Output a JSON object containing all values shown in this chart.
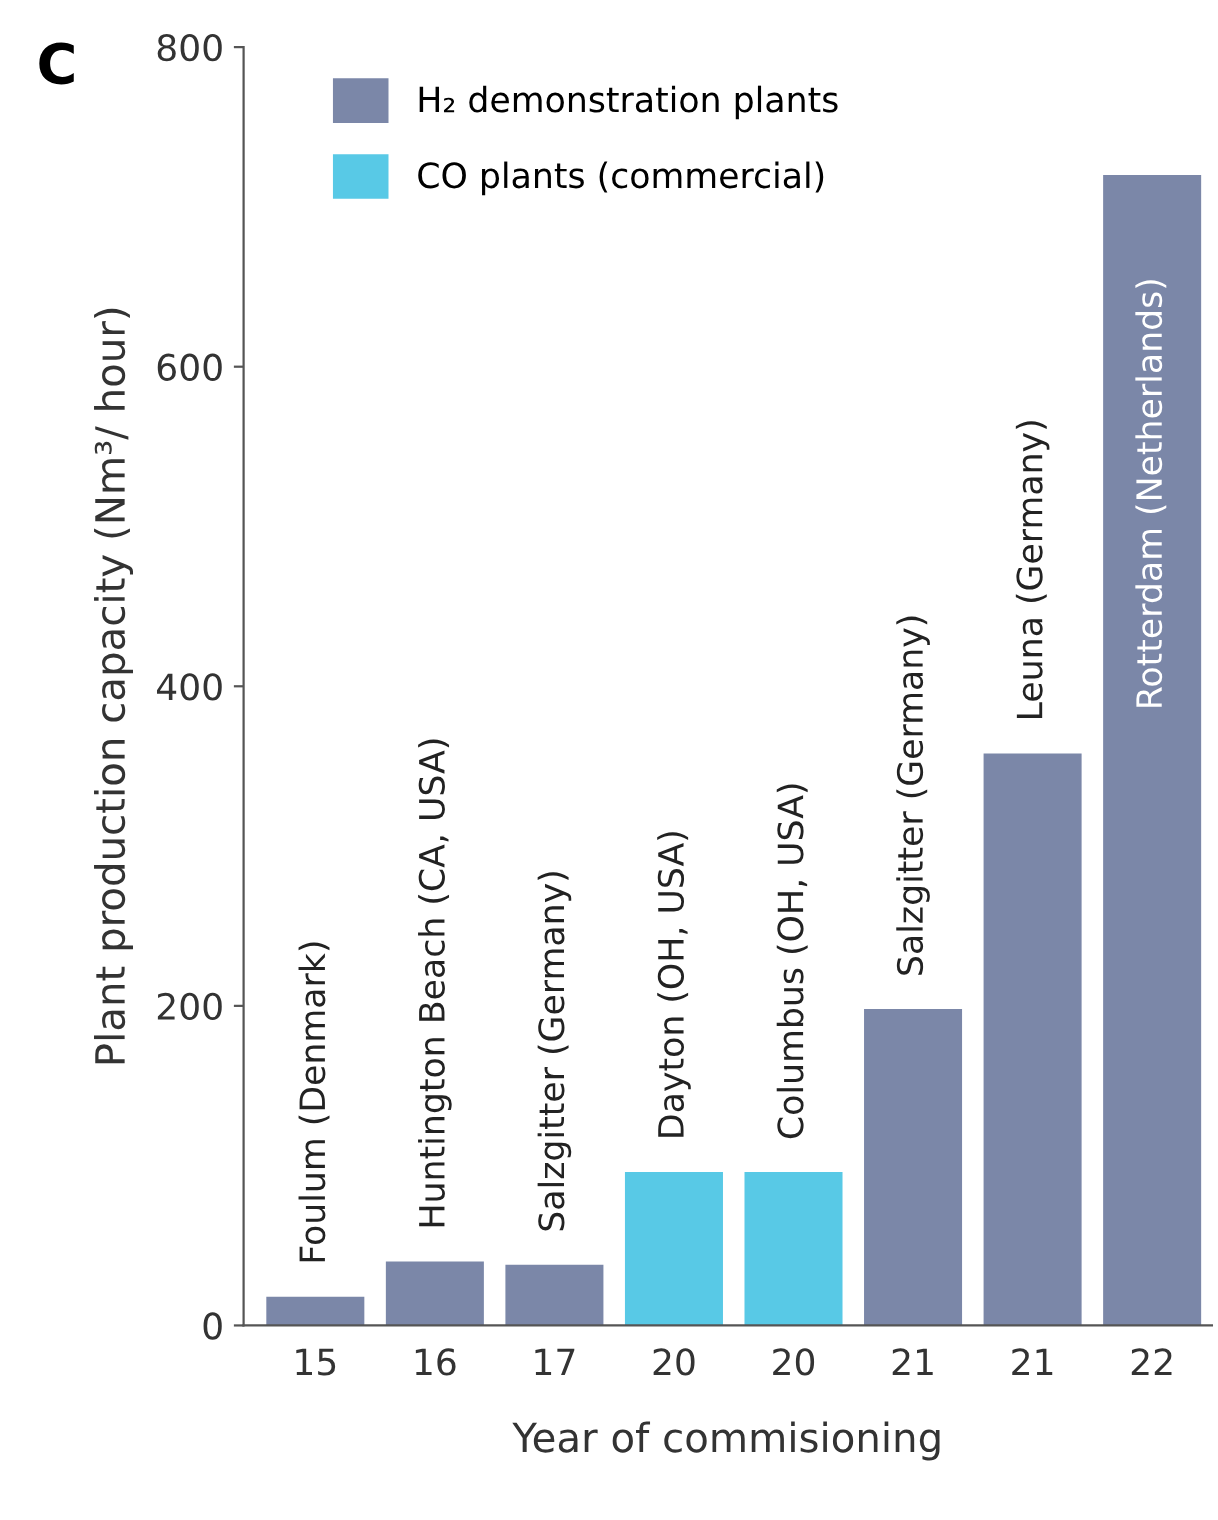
{
  "chart_data": {
    "type": "bar",
    "title": "C",
    "categories": [
      "15",
      "16",
      "17",
      "20",
      "20",
      "21",
      "21",
      "22"
    ],
    "series": [
      {
        "name": "H₂ demonstration plants",
        "color": "#7b87a8",
        "values": [
          18,
          40,
          38,
          null,
          null,
          198,
          358,
          720
        ]
      },
      {
        "name": "CO plants (commercial)",
        "color": "#58c9e6",
        "values": [
          null,
          null,
          null,
          96,
          96,
          null,
          null,
          null
        ]
      }
    ],
    "annotations": [
      "Foulum (Denmark)",
      "Huntington Beach (CA, USA)",
      "Salzgitter (Germany)",
      "Dayton (OH, USA)",
      "Columbus (OH, USA)",
      "Salzgitter (Germany)",
      "Leuna (Germany)",
      "Rotterdam (Netherlands)"
    ],
    "xlabel": "Year of commisioning",
    "ylabel": "Plant production capacity (Nm³/ hour)",
    "ylim": [
      0,
      800
    ],
    "yticks": [
      0,
      200,
      400,
      600,
      800
    ],
    "grid": false,
    "legend": "top left"
  }
}
